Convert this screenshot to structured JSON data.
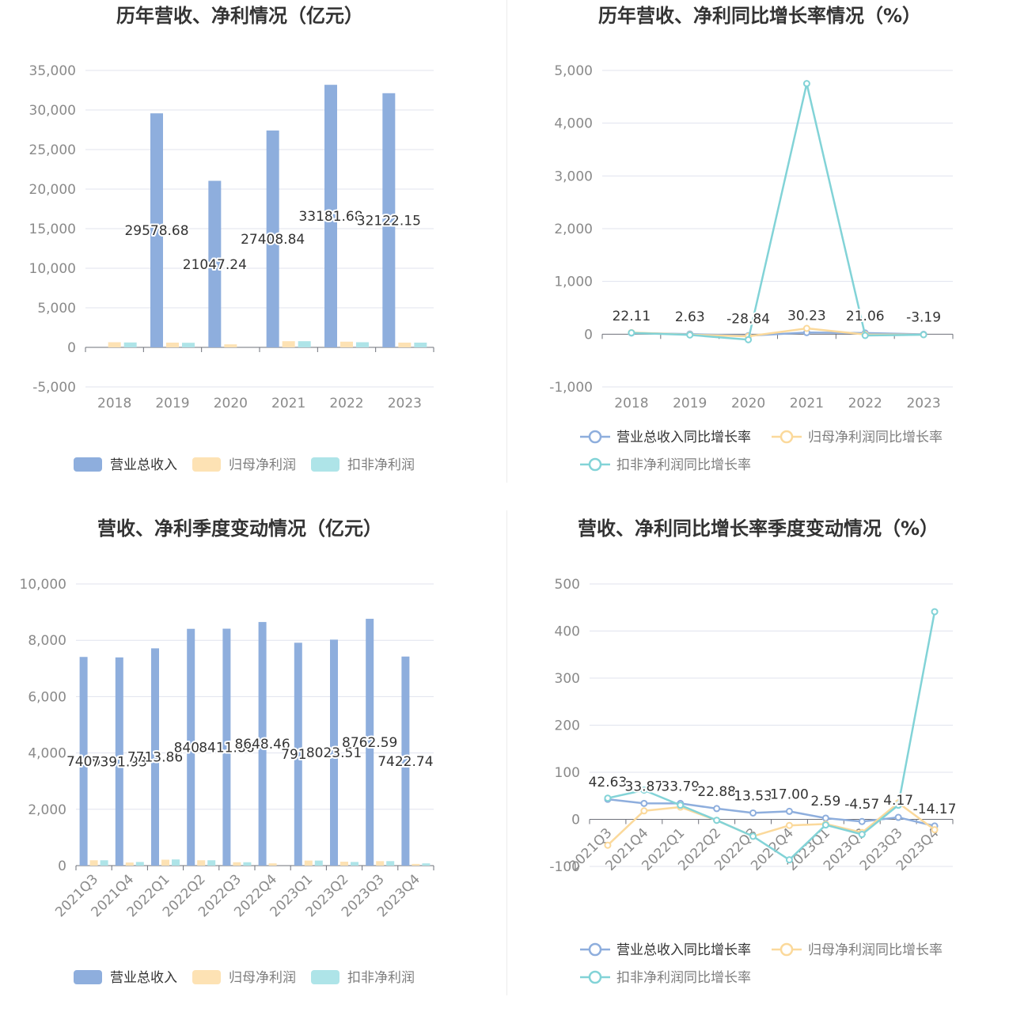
{
  "colors": {
    "revenue": "#8eaedd",
    "net_profit": "#fde2b4",
    "deducted_profit": "#aee4e8",
    "revenue_line": "#8eaedd",
    "net_profit_line": "#fbd99b",
    "deducted_profit_line": "#82d3d7",
    "grid": "#e0e3ee",
    "axis": "#6e7079"
  },
  "chart_data": [
    {
      "type": "bar",
      "title": "历年营收、净利情况（亿元）",
      "categories": [
        "2018",
        "2019",
        "2020",
        "2021",
        "2022",
        "2023"
      ],
      "ylim": [
        -5000,
        35000
      ],
      "yticks": [
        35000,
        30000,
        25000,
        20000,
        15000,
        10000,
        5000,
        0,
        -5000
      ],
      "ytick_labels": [
        "35,000",
        "30,000",
        "25,000",
        "20,000",
        "15,000",
        "10,000",
        "5,000",
        "0",
        "-5,000"
      ],
      "series": [
        {
          "name": "营业总收入",
          "values": [
            null,
            29578.68,
            21047.24,
            27408.84,
            33181.68,
            32122.15
          ],
          "labels": [
            "",
            "29578.68",
            "21047.24",
            "27408.84",
            "33181.68",
            "32122.15"
          ]
        },
        {
          "name": "归母净利润",
          "values": [
            650,
            600,
            380,
            780,
            720,
            600
          ]
        },
        {
          "name": "扣非净利润",
          "values": [
            620,
            580,
            0,
            780,
            650,
            600
          ]
        }
      ],
      "legend_position": "bottom"
    },
    {
      "type": "line",
      "title": "历年营收、净利同比增长率情况（%）",
      "categories": [
        "2018",
        "2019",
        "2020",
        "2021",
        "2022",
        "2023"
      ],
      "ylim": [
        -1000,
        5000
      ],
      "yticks": [
        5000,
        4000,
        3000,
        2000,
        1000,
        0,
        -1000
      ],
      "ytick_labels": [
        "5,000",
        "4,000",
        "3,000",
        "2,000",
        "1,000",
        "0",
        "-1,000"
      ],
      "series": [
        {
          "name": "营业总收入同比增长率",
          "values": [
            22.11,
            2.63,
            -28.84,
            30.23,
            21.06,
            -3.19
          ],
          "labels": [
            "22.11",
            "2.63",
            "-28.84",
            "30.23",
            "21.06",
            "-3.19"
          ]
        },
        {
          "name": "归母净利润同比增长率",
          "values": [
            30,
            -10,
            -40,
            110,
            -5,
            -10
          ]
        },
        {
          "name": "扣非净利润同比增长率",
          "values": [
            25,
            -15,
            -105,
            4750,
            -25,
            -10
          ]
        }
      ],
      "legend_position": "bottom"
    },
    {
      "type": "bar",
      "title": "营收、净利季度变动情况（亿元）",
      "categories": [
        "2021Q3",
        "2021Q4",
        "2022Q1",
        "2022Q2",
        "2022Q3",
        "2022Q4",
        "2023Q1",
        "2023Q2",
        "2023Q3",
        "2023Q4"
      ],
      "ylim": [
        0,
        10000
      ],
      "yticks": [
        10000,
        8000,
        6000,
        4000,
        2000,
        0
      ],
      "ytick_labels": [
        "10,000",
        "8,000",
        "6,000",
        "4,000",
        "2,000",
        "0"
      ],
      "series": [
        {
          "name": "营业总收入",
          "values": [
            7409,
            7391.93,
            7713.86,
            8407,
            8411.86,
            8648.46,
            7913,
            8023.51,
            8762.59,
            7422.74
          ],
          "labels": [
            "7409",
            "7391.93",
            "7713.86",
            "8407",
            "8411.86",
            "8648.46",
            "7913",
            "8023.51",
            "8762.59",
            "7422.74"
          ]
        },
        {
          "name": "归母净利润",
          "values": [
            190,
            110,
            210,
            190,
            120,
            80,
            180,
            140,
            160,
            60
          ]
        },
        {
          "name": "扣非净利润",
          "values": [
            190,
            130,
            220,
            190,
            120,
            0,
            180,
            130,
            160,
            80
          ]
        }
      ],
      "legend_position": "bottom"
    },
    {
      "type": "line",
      "title": "营收、净利同比增长率季度变动情况（%）",
      "categories": [
        "2021Q3",
        "2021Q4",
        "2022Q1",
        "2022Q2",
        "2022Q3",
        "2022Q4",
        "2023Q1",
        "2023Q2",
        "2023Q3",
        "2023Q4"
      ],
      "ylim": [
        -100,
        500
      ],
      "yticks": [
        500,
        400,
        300,
        200,
        100,
        0,
        -100
      ],
      "ytick_labels": [
        "500",
        "400",
        "300",
        "200",
        "100",
        "0",
        "-100"
      ],
      "series": [
        {
          "name": "营业总收入同比增长率",
          "values": [
            42.63,
            33.87,
            33.79,
            22.88,
            13.53,
            17.0,
            2.59,
            -4.57,
            4.17,
            -14.17
          ],
          "labels": [
            "42.63",
            "33.87",
            "33.79",
            "22.88",
            "13.53",
            "17.00",
            "2.59",
            "-4.57",
            "4.17",
            "-14.17"
          ]
        },
        {
          "name": "归母净利润同比增长率",
          "values": [
            -55,
            18,
            26,
            -2,
            -36,
            -13,
            -10,
            -28,
            35,
            -22
          ]
        },
        {
          "name": "扣非净利润同比增长率",
          "values": [
            45,
            62,
            30,
            -2,
            -36,
            -86,
            -12,
            -32,
            30,
            441
          ]
        }
      ],
      "legend_position": "bottom"
    }
  ]
}
